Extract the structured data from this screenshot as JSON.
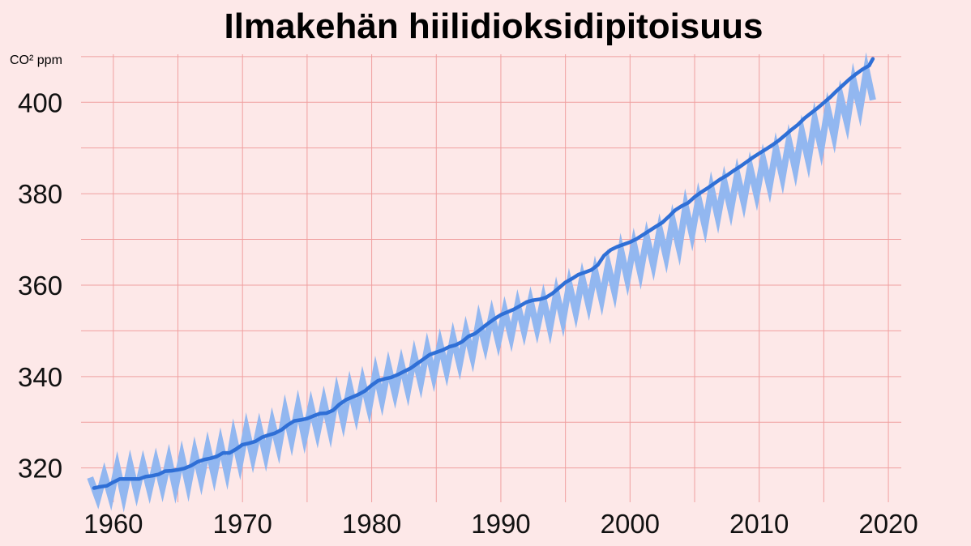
{
  "chart_data": {
    "type": "line",
    "title": "Ilmakehän hiilidioksidipitoisuus",
    "ylabel": "CO² ppm",
    "xlabel": "",
    "xlim": [
      1957.5,
      2021
    ],
    "ylim": [
      312.5,
      410.5
    ],
    "grid": true,
    "x_ticks": [
      1960,
      1970,
      1980,
      1990,
      2000,
      2010,
      2020
    ],
    "y_ticks": [
      320,
      340,
      360,
      380,
      400
    ],
    "y_minor_ticks": [
      330,
      350,
      370,
      390,
      410
    ],
    "x_minor_ticks": [
      1965,
      1975,
      1985,
      1995,
      2005,
      2015
    ],
    "colors": {
      "trend": "#2f6fd6",
      "monthly": "#92b7f0",
      "grid": "#f0a0a0",
      "background": "#fde8e8"
    },
    "series": [
      {
        "kind": "monthly",
        "x": [
          1958.2,
          1958.8,
          1959.3,
          1959.8,
          1960.3,
          1960.8,
          1961.3,
          1961.8,
          1962.3,
          1962.8,
          1963.3,
          1963.8,
          1964.3,
          1964.8,
          1965.3,
          1965.8,
          1966.3,
          1966.8,
          1967.3,
          1967.8,
          1968.3,
          1968.8,
          1969.3,
          1969.8,
          1970.3,
          1970.8,
          1971.3,
          1971.8,
          1972.3,
          1972.8,
          1973.3,
          1973.8,
          1974.3,
          1974.8,
          1975.3,
          1975.8,
          1976.3,
          1976.8,
          1977.3,
          1977.8,
          1978.3,
          1978.8,
          1979.3,
          1979.8,
          1980.3,
          1980.8,
          1981.3,
          1981.8,
          1982.3,
          1982.8,
          1983.3,
          1983.8,
          1984.3,
          1984.8,
          1985.3,
          1985.8,
          1986.3,
          1986.8,
          1987.3,
          1987.8,
          1988.3,
          1988.8,
          1989.3,
          1989.8,
          1990.3,
          1990.8,
          1991.3,
          1991.8,
          1992.3,
          1992.8,
          1993.3,
          1993.8,
          1994.3,
          1994.8,
          1995.3,
          1995.8,
          1996.3,
          1996.8,
          1997.3,
          1997.8,
          1998.3,
          1998.8,
          1999.3,
          1999.8,
          2000.3,
          2000.8,
          2001.3,
          2001.8,
          2002.3,
          2002.8,
          2003.3,
          2003.8,
          2004.3,
          2004.8,
          2005.3,
          2005.8,
          2006.3,
          2006.8,
          2007.3,
          2007.8,
          2008.3,
          2008.8,
          2009.3,
          2009.8,
          2010.3,
          2010.8,
          2011.3,
          2011.8,
          2012.3,
          2012.8,
          2013.3,
          2013.8,
          2014.3,
          2014.8,
          2015.3,
          2015.8,
          2016.3,
          2016.8,
          2017.3,
          2017.8,
          2018.3,
          2018.8
        ],
        "y": [
          317.9,
          313.3,
          318.6,
          313.6,
          320.3,
          313.7,
          320.7,
          314.7,
          320.9,
          315.2,
          321.4,
          315.6,
          322.0,
          315.6,
          322.6,
          316.1,
          323.5,
          317.4,
          324.6,
          318.3,
          325.4,
          318.9,
          327.2,
          320.9,
          328.6,
          322.2,
          328.8,
          322.6,
          330.0,
          324.3,
          332.5,
          326.1,
          333.5,
          326.6,
          333.6,
          327.6,
          334.6,
          328.1,
          336.5,
          330.2,
          337.8,
          331.6,
          339.0,
          333.1,
          341.0,
          334.8,
          342.2,
          336.2,
          342.9,
          336.9,
          344.6,
          338.6,
          346.2,
          340.0,
          347.2,
          341.2,
          348.6,
          342.6,
          350.0,
          344.3,
          352.4,
          346.7,
          353.6,
          347.6,
          354.4,
          348.6,
          355.8,
          349.9,
          356.5,
          350.4,
          357.0,
          350.6,
          358.4,
          352.2,
          360.2,
          354.0,
          361.6,
          355.6,
          363.0,
          356.8,
          364.5,
          358.5,
          367.6,
          361.2,
          369.0,
          362.6,
          370.5,
          364.4,
          372.2,
          366.1,
          374.2,
          368.0,
          377.3,
          371.0,
          379.0,
          372.8,
          381.2,
          374.8,
          382.6,
          376.4,
          384.3,
          378.1,
          385.8,
          379.7,
          387.5,
          381.5,
          389.8,
          383.5,
          391.6,
          385.2,
          393.6,
          387.2,
          396.3,
          389.8,
          398.6,
          392.5,
          401.3,
          395.4,
          404.8,
          398.4,
          407.1,
          400.5
        ]
      },
      {
        "kind": "trend",
        "x": [
          1958.5,
          1959.0,
          1959.5,
          1960.0,
          1960.5,
          1961.0,
          1961.5,
          1962.0,
          1962.5,
          1963.0,
          1963.5,
          1964.0,
          1964.5,
          1965.0,
          1965.5,
          1966.0,
          1966.5,
          1967.0,
          1967.5,
          1968.0,
          1968.5,
          1969.0,
          1969.5,
          1970.0,
          1970.5,
          1971.0,
          1971.5,
          1972.0,
          1972.5,
          1973.0,
          1973.5,
          1974.0,
          1974.5,
          1975.0,
          1975.5,
          1976.0,
          1976.5,
          1977.0,
          1977.5,
          1978.0,
          1978.5,
          1979.0,
          1979.5,
          1980.0,
          1980.5,
          1981.0,
          1981.5,
          1982.0,
          1982.5,
          1983.0,
          1983.5,
          1984.0,
          1984.5,
          1985.0,
          1985.5,
          1986.0,
          1986.5,
          1987.0,
          1987.5,
          1988.0,
          1988.5,
          1989.0,
          1989.5,
          1990.0,
          1990.5,
          1991.0,
          1991.5,
          1992.0,
          1992.5,
          1993.0,
          1993.5,
          1994.0,
          1994.5,
          1995.0,
          1995.5,
          1996.0,
          1996.5,
          1997.0,
          1997.5,
          1998.0,
          1998.5,
          1999.0,
          1999.5,
          2000.0,
          2000.5,
          2001.0,
          2001.5,
          2002.0,
          2002.5,
          2003.0,
          2003.5,
          2004.0,
          2004.5,
          2005.0,
          2005.5,
          2006.0,
          2006.5,
          2007.0,
          2007.5,
          2008.0,
          2008.5,
          2009.0,
          2009.5,
          2010.0,
          2010.5,
          2011.0,
          2011.5,
          2012.0,
          2012.5,
          2013.0,
          2013.5,
          2014.0,
          2014.5,
          2015.0,
          2015.5,
          2016.0,
          2016.5,
          2017.0,
          2017.5,
          2018.0,
          2018.5,
          2018.8
        ],
        "y": [
          315.6,
          315.9,
          316.1,
          316.9,
          317.6,
          317.6,
          317.6,
          317.6,
          318.1,
          318.3,
          318.6,
          319.3,
          319.4,
          319.6,
          319.9,
          320.5,
          321.3,
          321.8,
          322.1,
          322.5,
          323.3,
          323.3,
          324.1,
          325.1,
          325.4,
          325.8,
          326.7,
          327.2,
          327.6,
          328.3,
          329.4,
          330.3,
          330.5,
          330.8,
          331.4,
          331.9,
          332.0,
          332.6,
          333.9,
          334.9,
          335.5,
          336.1,
          336.9,
          338.1,
          339.1,
          339.5,
          339.8,
          340.4,
          341.1,
          341.8,
          342.8,
          343.8,
          344.8,
          345.3,
          345.8,
          346.5,
          346.9,
          347.6,
          348.8,
          349.4,
          350.5,
          351.6,
          352.6,
          353.5,
          354.1,
          354.7,
          355.5,
          356.3,
          356.7,
          356.9,
          357.3,
          358.2,
          359.4,
          360.6,
          361.4,
          362.3,
          362.8,
          363.3,
          364.4,
          366.5,
          367.7,
          368.4,
          368.9,
          369.4,
          370.1,
          371.0,
          371.9,
          372.8,
          373.7,
          375.0,
          376.4,
          377.3,
          378.0,
          379.3,
          380.3,
          381.2,
          382.2,
          383.2,
          384.0,
          385.0,
          385.9,
          386.9,
          387.9,
          388.8,
          389.7,
          390.6,
          391.6,
          392.8,
          394.0,
          395.1,
          396.5,
          397.6,
          398.7,
          399.9,
          401.1,
          402.5,
          403.8,
          405.1,
          406.2,
          407.2,
          408.0,
          409.5
        ]
      }
    ]
  }
}
